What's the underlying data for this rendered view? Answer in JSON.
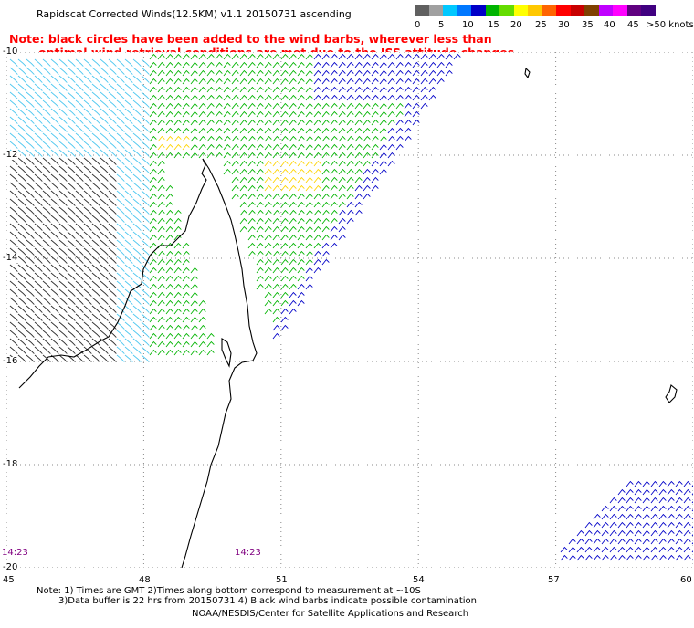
{
  "header": {
    "title": "Rapidscat Corrected Winds(12.5KM) v1.1 20150731 ascending",
    "note_line1": "Note: black circles have been added to the wind barbs, wherever less than",
    "note_line2": "optimal wind retrieval conditions are met due to the ISS attitude changes."
  },
  "legend": {
    "colors": [
      "#606060",
      "#a0a0a0",
      "#00c8ff",
      "#0078ff",
      "#0000c8",
      "#00b400",
      "#64dc00",
      "#ffff00",
      "#ffc800",
      "#ff6400",
      "#ff0000",
      "#c80000",
      "#804000",
      "#c000ff",
      "#ff00ff",
      "#600080",
      "#400080"
    ],
    "labels": [
      "0",
      "5",
      "10",
      "15",
      "20",
      "25",
      "30",
      "35",
      "40",
      "45",
      ">50 knots"
    ]
  },
  "map": {
    "lat_labels": [
      "-10",
      "-12",
      "-14",
      "-16",
      "-18",
      "-20"
    ],
    "lon_labels": [
      "45",
      "48",
      "51",
      "54",
      "57",
      "60"
    ],
    "lon_range": [
      45,
      60
    ],
    "lat_range": [
      -10,
      -20
    ],
    "pass_times": [
      "14:23",
      "14:23"
    ],
    "wind_colors": {
      "calm": "#303030",
      "light": "#50c8f0",
      "moderate": "#0000c8",
      "fresh": "#00b400",
      "strong": "#64dc00",
      "gale": "#ffd400"
    }
  },
  "footer": {
    "line1": "Note: 1) Times are GMT 2)Times along bottom correspond to measurement at ~10S",
    "line2": "3)Data buffer is 22 hrs from 20150731 4) Black wind barbs indicate possible contamination",
    "credit": "NOAA/NESDIS/Center for Satellite Applications and Research"
  }
}
